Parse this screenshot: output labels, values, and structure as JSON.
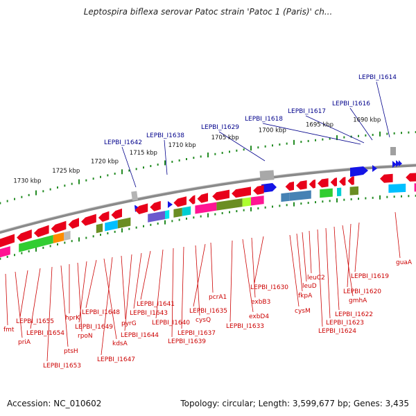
{
  "title": "Leptospira biflexa serovar Patoc strain 'Patoc 1 (Paris)' ch...",
  "accession": "Accession: NC_010602",
  "summary": "Topology: circular; Length: 3,599,677 bp; Genes: 3,435",
  "kbp_labels": [
    "1730 kbp",
    "1725 kbp",
    "1720 kbp",
    "1715 kbp",
    "1710 kbp",
    "1705 kbp",
    "1700 kbp",
    "1695 kbp",
    "1690 kbp"
  ],
  "top_labels": [
    "LEPBI_I1642",
    "LEPBI_I1638",
    "LEPBI_I1629",
    "LEPBI_I1618",
    "LEPBI_I1617",
    "LEPBI_I1616",
    "LEPBI_I1614"
  ],
  "bottom_labels": [
    "fmt",
    "priA",
    "LEPBI_I1655",
    "LEPBI_I1654",
    "LEPBI_I1653",
    "ptsH",
    "hprK",
    "rpoN",
    "LEPBI_I1649",
    "LEPBI_I1648",
    "kdsA",
    "LEPBI_I1647",
    "pyrG",
    "LEPBI_I1644",
    "LEPBI_I1643",
    "LEPBI_I1641",
    "LEPBI_I1640",
    "LEPBI_I1639",
    "LEPBI_I1637",
    "cysQ",
    "LEPBI_I1635",
    "pcrA1",
    "LEPBI_I1633",
    "exbD4",
    "exbB3",
    "LEPBI_I1630",
    "cysM",
    "fkpA",
    "leuD",
    "leuC2",
    "LEPBI_I1624",
    "LEPBI_I1623",
    "LEPBI_I1622",
    "gmhA",
    "LEPBI_I1620",
    "LEPBI_I1619",
    "guaA"
  ],
  "colors": {
    "forward_genes": "#e8001a",
    "reverse_genes": "#0000dd",
    "backbone": "#888888",
    "ticks": "#228b22",
    "top_label": "#00008b",
    "bottom_label": "#cc0000"
  }
}
